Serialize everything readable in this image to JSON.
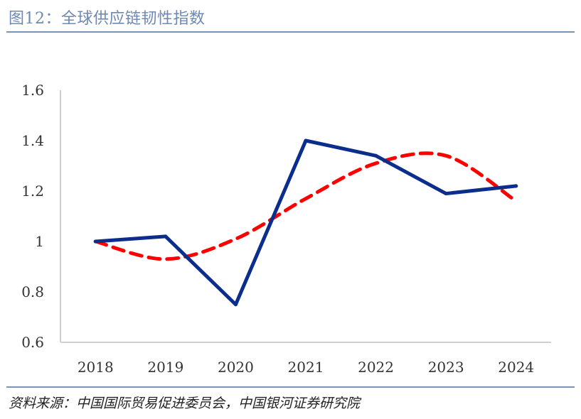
{
  "title": "图12：全球供应链韧性指数",
  "source": "资料来源：中国国际贸易促进委员会，中国银河证券研究院",
  "chart_data": {
    "type": "line",
    "title": "",
    "xlabel": "",
    "ylabel": "",
    "categories": [
      "2018",
      "2019",
      "2020",
      "2021",
      "2022",
      "2023",
      "2024"
    ],
    "series": [
      {
        "values": [
          1.0,
          1.02,
          0.75,
          1.4,
          1.34,
          1.19,
          1.22
        ],
        "color": "#0b2d8c",
        "style": "solid"
      },
      {
        "values": [
          1.0,
          0.93,
          1.01,
          1.17,
          1.31,
          1.34,
          1.16
        ],
        "color": "#ff0000",
        "style": "dashed smooth trend"
      }
    ],
    "ylim": [
      0.6,
      1.6
    ],
    "yticks": [
      "0.6",
      "0.8",
      "1",
      "1.2",
      "1.4",
      "1.6"
    ],
    "grid": false,
    "legend": "none"
  }
}
